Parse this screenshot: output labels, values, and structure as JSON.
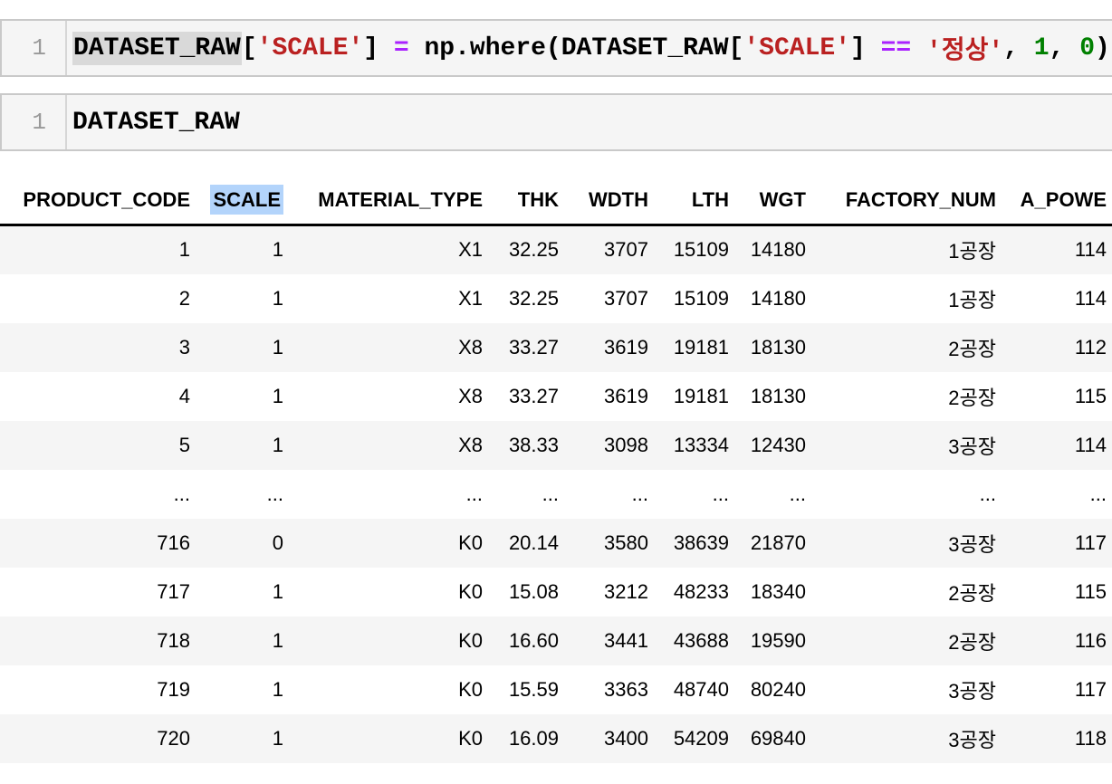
{
  "notebook": {
    "cells": [
      {
        "name": "cell-1",
        "line_number": "1",
        "tokens": [
          {
            "text": "DATASET_RAW",
            "style": "plain",
            "highlight": true
          },
          {
            "text": "[",
            "style": "plain"
          },
          {
            "text": "'SCALE'",
            "style": "string"
          },
          {
            "text": "] ",
            "style": "plain"
          },
          {
            "text": "=",
            "style": "operator"
          },
          {
            "text": " np.where(DATASET_RAW[",
            "style": "plain"
          },
          {
            "text": "'SCALE'",
            "style": "string"
          },
          {
            "text": "] ",
            "style": "plain"
          },
          {
            "text": "==",
            "style": "operator"
          },
          {
            "text": " ",
            "style": "plain"
          },
          {
            "text": "'정상'",
            "style": "string"
          },
          {
            "text": ", ",
            "style": "plain"
          },
          {
            "text": "1",
            "style": "number"
          },
          {
            "text": ", ",
            "style": "plain"
          },
          {
            "text": "0",
            "style": "number"
          },
          {
            "text": ")",
            "style": "plain"
          }
        ]
      },
      {
        "name": "cell-2",
        "line_number": "1",
        "tokens": [
          {
            "text": "DATASET_RAW",
            "style": "plain"
          }
        ]
      }
    ]
  },
  "table": {
    "columns": [
      "PRODUCT_CODE",
      "SCALE",
      "MATERIAL_TYPE",
      "THK",
      "WDTH",
      "LTH",
      "WGT",
      "FACTORY_NUM",
      "A_POWE"
    ],
    "highlighted_column_index": 1,
    "rows": [
      [
        "1",
        "1",
        "X1",
        "32.25",
        "3707",
        "15109",
        "14180",
        "1공장",
        "114"
      ],
      [
        "2",
        "1",
        "X1",
        "32.25",
        "3707",
        "15109",
        "14180",
        "1공장",
        "114"
      ],
      [
        "3",
        "1",
        "X8",
        "33.27",
        "3619",
        "19181",
        "18130",
        "2공장",
        "112"
      ],
      [
        "4",
        "1",
        "X8",
        "33.27",
        "3619",
        "19181",
        "18130",
        "2공장",
        "115"
      ],
      [
        "5",
        "1",
        "X8",
        "38.33",
        "3098",
        "13334",
        "12430",
        "3공장",
        "114"
      ],
      [
        "...",
        "...",
        "...",
        "...",
        "...",
        "...",
        "...",
        "...",
        "..."
      ],
      [
        "716",
        "0",
        "K0",
        "20.14",
        "3580",
        "38639",
        "21870",
        "3공장",
        "117"
      ],
      [
        "717",
        "1",
        "K0",
        "15.08",
        "3212",
        "48233",
        "18340",
        "2공장",
        "115"
      ],
      [
        "718",
        "1",
        "K0",
        "16.60",
        "3441",
        "43688",
        "19590",
        "2공장",
        "116"
      ],
      [
        "719",
        "1",
        "K0",
        "15.59",
        "3363",
        "48740",
        "80240",
        "3공장",
        "117"
      ],
      [
        "720",
        "1",
        "K0",
        "16.09",
        "3400",
        "54209",
        "69840",
        "3공장",
        "118"
      ]
    ]
  },
  "colors": {
    "string": "#BA2121",
    "operator": "#AA22FF",
    "number": "#008000",
    "word_highlight": "#d9d9d9",
    "column_selection": "#b3d4fb",
    "row_stripe": "#f5f5f5",
    "cell_background": "#f5f5f5"
  }
}
